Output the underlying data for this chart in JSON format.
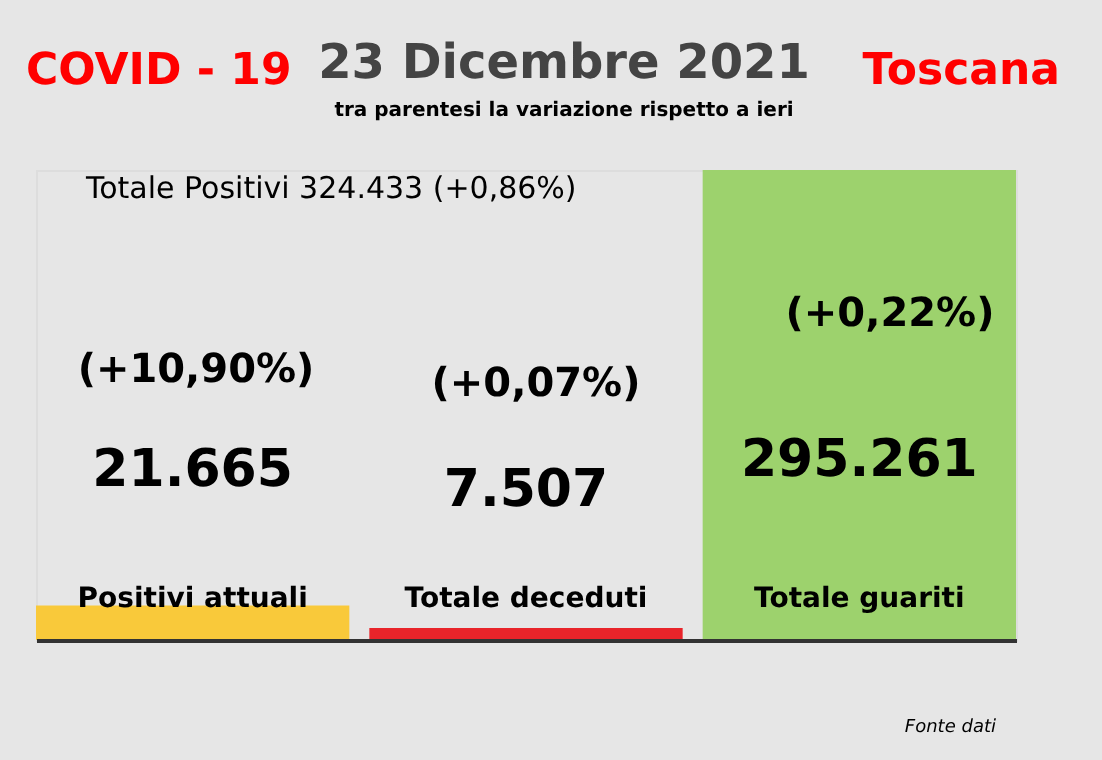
{
  "chart_data": {
    "type": "bar",
    "title": "23 Dicembre 2021",
    "subtitle": "tra parentesi la variazione rispetto a ieri",
    "annotations": [
      "COVID - 19",
      "Toscana",
      "Totale Positivi     324.433 (+0,86%)",
      "(+10,90%)",
      "(+0,07%)",
      "(+0,22%)",
      "Fonte dati"
    ],
    "categories": [
      "Positivi attuali",
      "Totale deceduti",
      "Totale guariti"
    ],
    "values": [
      21665,
      7507,
      295261
    ],
    "colors": [
      "#f9c93a",
      "#e8242a",
      "#9dd26d"
    ],
    "value_labels": [
      "21.665",
      "7.507",
      "295.261"
    ]
  }
}
